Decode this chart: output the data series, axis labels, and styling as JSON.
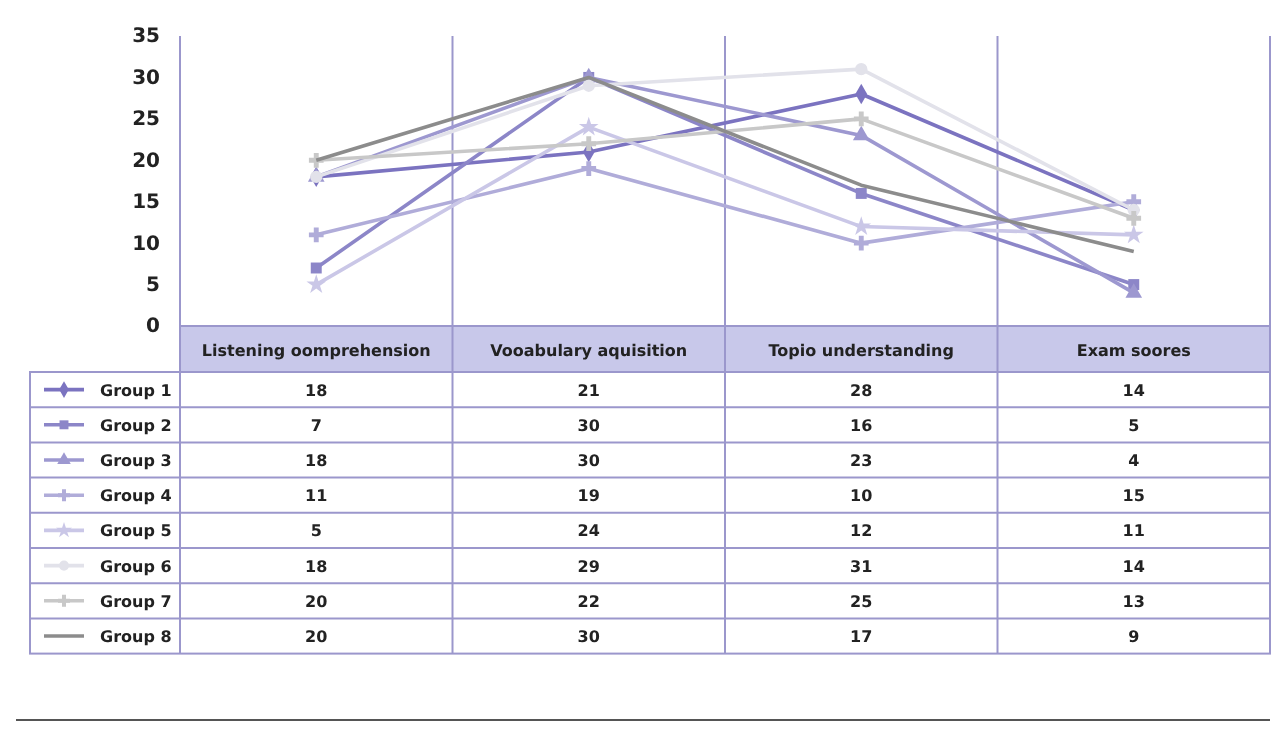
{
  "chart_data": {
    "type": "line",
    "categories": [
      "Listening oomprehension",
      "Vooabulary aquisition",
      "Topio understanding",
      "Exam soores"
    ],
    "ylim": [
      0,
      35
    ],
    "yticks": [
      0,
      5,
      10,
      15,
      20,
      25,
      30,
      35
    ],
    "grid": "x",
    "data_labels": true,
    "legend": "bottom",
    "series": [
      {
        "name": "Group 1",
        "color": "#7b73c0",
        "marker": "diamond",
        "values": [
          18,
          21,
          28,
          14
        ]
      },
      {
        "name": "Group 2",
        "color": "#8c86c8",
        "marker": "square",
        "values": [
          7,
          30,
          16,
          5
        ]
      },
      {
        "name": "Group 3",
        "color": "#9d98d0",
        "marker": "triangle",
        "values": [
          18,
          30,
          23,
          4
        ]
      },
      {
        "name": "Group 4",
        "color": "#b0acd9",
        "marker": "cross",
        "values": [
          11,
          19,
          10,
          15
        ]
      },
      {
        "name": "Group 5",
        "color": "#cac7e7",
        "marker": "star",
        "values": [
          5,
          24,
          12,
          11
        ]
      },
      {
        "name": "Group 6",
        "color": "#e2e2ea",
        "marker": "circle",
        "values": [
          18,
          29,
          31,
          14
        ]
      },
      {
        "name": "Group 7",
        "color": "#c8c8c8",
        "marker": "cross",
        "values": [
          20,
          22,
          25,
          13
        ]
      },
      {
        "name": "Group 8",
        "color": "#8c8c8c",
        "marker": "none",
        "values": [
          20,
          30,
          17,
          9
        ]
      }
    ]
  }
}
